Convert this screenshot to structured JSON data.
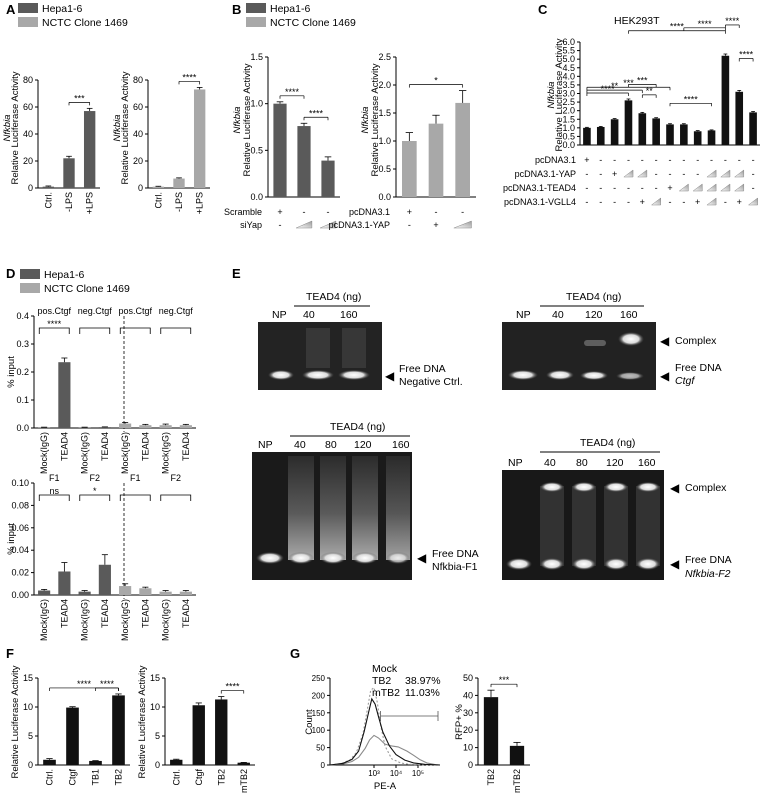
{
  "panel_labels": [
    "A",
    "B",
    "C",
    "D",
    "E",
    "F",
    "G"
  ],
  "colors": {
    "dark": "#5a5a5a",
    "light": "#a8a8a8",
    "black": "#111111",
    "shade": "#c8c8c8"
  },
  "legend": {
    "dark": "Hepa1-6",
    "light": "NCTC Clone 1469"
  },
  "chart_data": [
    {
      "id": "A1",
      "type": "bar",
      "ylabel_gene": "Nfkbia",
      "ylabel": "Relative Luciferase Activity",
      "categories": [
        "Ctrl.",
        "-LPS",
        "+LPS"
      ],
      "values": [
        1,
        22,
        57
      ],
      "errors": [
        0.5,
        1.5,
        2
      ],
      "ylim": [
        0,
        80
      ],
      "yticks": [
        0,
        20,
        40,
        60,
        80
      ],
      "color": "dark",
      "sig": [
        {
          "from": 1,
          "to": 2,
          "text": "***"
        }
      ]
    },
    {
      "id": "A2",
      "type": "bar",
      "ylabel_gene": "Nfkbia",
      "ylabel": "Relative Luciferase Activity",
      "categories": [
        "Ctrl.",
        "-LPS",
        "+LPS"
      ],
      "values": [
        1,
        7,
        73
      ],
      "errors": [
        0.3,
        0.5,
        1.5
      ],
      "ylim": [
        0,
        80
      ],
      "yticks": [
        0,
        20,
        40,
        60,
        80
      ],
      "color": "light",
      "sig": [
        {
          "from": 1,
          "to": 2,
          "text": "****"
        }
      ]
    },
    {
      "id": "B1",
      "type": "bar",
      "ylabel_gene": "Nfkbia",
      "ylabel": "Relative Luciferase Activity",
      "categories": [
        "1",
        "2",
        "3"
      ],
      "values": [
        1.0,
        0.76,
        0.39
      ],
      "errors": [
        0.02,
        0.03,
        0.04
      ],
      "ylim": [
        0,
        1.5
      ],
      "yticks": [
        0.0,
        0.5,
        1.0,
        1.5
      ],
      "ytick_labels": [
        "0.0",
        "0.5",
        "1.0",
        "1.5"
      ],
      "color": "dark",
      "sig": [
        {
          "from": 0,
          "to": 1,
          "text": "****"
        },
        {
          "from": 1,
          "to": 2,
          "text": "****"
        }
      ],
      "rows": [
        {
          "label": "Scramble",
          "marks": [
            "+",
            "-",
            "-"
          ]
        },
        {
          "label": "siYap",
          "marks": [
            "-",
            "ramp",
            "ramp"
          ]
        }
      ]
    },
    {
      "id": "B2",
      "type": "bar",
      "ylabel_gene": "Nfkbia",
      "ylabel": "Relative Luciferase Activity",
      "categories": [
        "1",
        "2",
        "3"
      ],
      "values": [
        1.0,
        1.31,
        1.68
      ],
      "errors": [
        0.15,
        0.15,
        0.22
      ],
      "ylim": [
        0,
        2.5
      ],
      "yticks": [
        0.0,
        0.5,
        1.0,
        1.5,
        2.0,
        2.5
      ],
      "ytick_labels": [
        "0.0",
        "0.5",
        "1.0",
        "1.5",
        "2.0",
        "2.5"
      ],
      "color": "light",
      "sig": [
        {
          "from": 0,
          "to": 2,
          "text": "*"
        }
      ],
      "rows": [
        {
          "label": "pcDNA3.1",
          "marks": [
            "+",
            "-",
            "-"
          ]
        },
        {
          "label": "pcDNA3.1-YAP",
          "marks": [
            "-",
            "+",
            "ramp"
          ]
        }
      ]
    },
    {
      "id": "C",
      "type": "bar",
      "title": "HEK293T",
      "ylabel_gene": "Nfkbia",
      "ylabel": "Relative Luciferase Activity",
      "categories": [
        "1",
        "2",
        "3",
        "4",
        "5",
        "6",
        "7",
        "8",
        "9",
        "10",
        "11",
        "12",
        "13"
      ],
      "values": [
        1.0,
        1.05,
        1.5,
        2.6,
        1.85,
        1.55,
        1.2,
        1.2,
        0.8,
        0.85,
        5.2,
        3.1,
        1.9
      ],
      "errors": [
        0.03,
        0.03,
        0.04,
        0.08,
        0.05,
        0.04,
        0.04,
        0.04,
        0.04,
        0.03,
        0.1,
        0.08,
        0.05
      ],
      "ylim": [
        0,
        6
      ],
      "yticks": [
        0.0,
        0.5,
        1.0,
        1.5,
        2.0,
        2.5,
        3.0,
        3.5,
        4.0,
        4.5,
        5.0,
        5.5,
        6.0
      ],
      "ytick_labels": [
        "0.0",
        "0.5",
        "1.0",
        "1.5",
        "2.0",
        "2.5",
        "3.0",
        "3.5",
        "4.0",
        "4.5",
        "5.0",
        "5.5",
        "6.0"
      ],
      "color": "black",
      "sig": [
        {
          "from": 0,
          "to": 3,
          "text": "****"
        },
        {
          "from": 0,
          "to": 4,
          "text": "**"
        },
        {
          "from": 0,
          "to": 6,
          "text": "***"
        },
        {
          "from": 3,
          "to": 5,
          "text": "***"
        },
        {
          "from": 4,
          "to": 5,
          "text": "**"
        },
        {
          "from": 6,
          "to": 9,
          "text": "****"
        },
        {
          "from": 3,
          "to": 10,
          "text": "****"
        },
        {
          "from": 7,
          "to": 10,
          "text": "****"
        },
        {
          "from": 10,
          "to": 11,
          "text": "****"
        },
        {
          "from": 11,
          "to": 12,
          "text": "****"
        }
      ],
      "rows": [
        {
          "label": "pcDNA3.1",
          "marks": [
            "+",
            "-",
            "-",
            "-",
            "-",
            "-",
            "-",
            "-",
            "-",
            "-",
            "-",
            "-",
            "-"
          ]
        },
        {
          "label": "pcDNA3.1-YAP",
          "marks": [
            "-",
            "-",
            "+",
            "ramp",
            "ramp",
            "-",
            "-",
            "-",
            "-",
            "ramp",
            "ramp",
            "ramp",
            "-"
          ]
        },
        {
          "label": "pcDNA3.1-TEAD4",
          "marks": [
            "-",
            "-",
            "-",
            "-",
            "-",
            "-",
            "+",
            "ramp",
            "ramp",
            "ramp",
            "ramp",
            "ramp",
            "-"
          ]
        },
        {
          "label": "pcDNA3.1-VGLL4",
          "marks": [
            "-",
            "-",
            "-",
            "-",
            "+",
            "ramp",
            "-",
            "-",
            "+",
            "ramp",
            "-",
            "+",
            "ramp"
          ]
        }
      ]
    },
    {
      "id": "D1",
      "type": "bar",
      "ylabel": "% input",
      "categories": [
        "Mock(IgG)",
        "TEAD4",
        "Mock(IgG)",
        "TEAD4",
        "Mock(IgG)",
        "TEAD4",
        "Mock(IgG)",
        "TEAD4"
      ],
      "values": [
        0.002,
        0.235,
        0.002,
        0.003,
        0.016,
        0.01,
        0.01,
        0.01
      ],
      "errors": [
        0.001,
        0.015,
        0.001,
        0.001,
        0.004,
        0.003,
        0.004,
        0.003
      ],
      "bar_colors": [
        "dark",
        "dark",
        "dark",
        "dark",
        "light",
        "light",
        "light",
        "light"
      ],
      "ylim": [
        0,
        0.4
      ],
      "yticks": [
        0.0,
        0.1,
        0.2,
        0.3,
        0.4
      ],
      "ytick_labels": [
        "0.0",
        "0.1",
        "0.2",
        "0.3",
        "0.4"
      ],
      "groups": [
        {
          "label": "pos.Ctgf",
          "from": 0,
          "to": 1,
          "bracket_text": "****"
        },
        {
          "label": "neg.Ctgf",
          "from": 2,
          "to": 3,
          "bracket_text": ""
        },
        {
          "label": "pos.Ctgf",
          "from": 4,
          "to": 5,
          "bracket_text": ""
        },
        {
          "label": "neg.Ctgf",
          "from": 6,
          "to": 7,
          "bracket_text": ""
        }
      ]
    },
    {
      "id": "D2",
      "type": "bar",
      "ylabel": "% input",
      "categories": [
        "Mock(IgG)",
        "TEAD4",
        "Mock(IgG)",
        "TEAD4",
        "Mock(IgG)",
        "TEAD4",
        "Mock(IgG)",
        "TEAD4"
      ],
      "values": [
        0.004,
        0.021,
        0.003,
        0.027,
        0.008,
        0.006,
        0.003,
        0.003
      ],
      "errors": [
        0.001,
        0.008,
        0.001,
        0.009,
        0.002,
        0.001,
        0.001,
        0.001
      ],
      "bar_colors": [
        "dark",
        "dark",
        "dark",
        "dark",
        "light",
        "light",
        "light",
        "light"
      ],
      "ylim": [
        0,
        0.1
      ],
      "yticks": [
        0.0,
        0.02,
        0.04,
        0.06,
        0.08,
        0.1
      ],
      "ytick_labels": [
        "0.00",
        "0.02",
        "0.04",
        "0.06",
        "0.08",
        "0.10"
      ],
      "groups": [
        {
          "label": "F1",
          "from": 0,
          "to": 1,
          "bracket_text": "ns"
        },
        {
          "label": "F2",
          "from": 2,
          "to": 3,
          "bracket_text": "*"
        },
        {
          "label": "F1",
          "from": 4,
          "to": 5,
          "bracket_text": ""
        },
        {
          "label": "F2",
          "from": 6,
          "to": 7,
          "bracket_text": ""
        }
      ]
    },
    {
      "id": "F1",
      "type": "bar",
      "ylabel": "Relative Luciferase Activity",
      "categories": [
        "Ctrl.",
        "Ctgf",
        "TB1",
        "TB2"
      ],
      "values": [
        0.9,
        9.9,
        0.7,
        12.0
      ],
      "errors": [
        0.2,
        0.15,
        0.05,
        0.25
      ],
      "ylim": [
        0,
        15
      ],
      "yticks": [
        0,
        5,
        10,
        15
      ],
      "color": "black",
      "sig": [
        {
          "from": 0,
          "to": 3,
          "text": "****"
        },
        {
          "from": 2,
          "to": 3,
          "text": "****"
        }
      ]
    },
    {
      "id": "F2",
      "type": "bar",
      "ylabel": "Relative Luciferase Activity",
      "categories": [
        "Ctrl.",
        "Ctgf",
        "TB2",
        "mTB2"
      ],
      "values": [
        0.9,
        10.3,
        11.3,
        0.4
      ],
      "errors": [
        0.1,
        0.4,
        0.5,
        0.05
      ],
      "ylim": [
        0,
        15
      ],
      "yticks": [
        0,
        5,
        10,
        15
      ],
      "color": "black",
      "sig": [
        {
          "from": 2,
          "to": 3,
          "text": "****"
        }
      ]
    },
    {
      "id": "G1",
      "type": "line",
      "ylabel": "Count",
      "xlabel": "PE-A",
      "ylim": [
        0,
        250
      ],
      "yticks": [
        0,
        50,
        100,
        150,
        200,
        250
      ],
      "xticks": [
        "10³",
        "10⁴",
        "10⁵"
      ],
      "legend": [
        {
          "name": "Mock",
          "value": ""
        },
        {
          "name": "TB2",
          "value": "38.97%"
        },
        {
          "name": "mTB2",
          "value": "11.03%"
        }
      ],
      "series": [
        {
          "name": "Mock",
          "x": [
            0,
            0.5,
            0.9,
            1.2,
            1.5,
            1.7,
            1.85,
            2.0,
            2.15,
            2.3,
            2.5,
            2.8,
            3.2,
            3.6,
            4.0,
            4.5,
            5.0
          ],
          "values": [
            0,
            4,
            14,
            36,
            90,
            160,
            215,
            222,
            180,
            115,
            55,
            18,
            6,
            2,
            1,
            0,
            0
          ]
        },
        {
          "name": "TB2",
          "x": [
            0,
            0.6,
            1.0,
            1.3,
            1.6,
            1.8,
            2.0,
            2.2,
            2.5,
            2.8,
            3.1,
            3.5,
            3.8,
            4.1,
            4.4,
            4.8,
            5.0
          ],
          "values": [
            0,
            3,
            10,
            22,
            48,
            72,
            85,
            78,
            60,
            55,
            52,
            40,
            28,
            15,
            6,
            1,
            0
          ]
        },
        {
          "name": "mTB2",
          "x": [
            0,
            0.6,
            1.0,
            1.3,
            1.55,
            1.75,
            1.9,
            2.05,
            2.2,
            2.4,
            2.7,
            3.0,
            3.4,
            3.8,
            4.3,
            5.0
          ],
          "values": [
            0,
            5,
            16,
            40,
            95,
            150,
            190,
            175,
            140,
            95,
            55,
            30,
            14,
            6,
            2,
            0
          ]
        }
      ]
    },
    {
      "id": "G2",
      "type": "bar",
      "ylabel": "RFP+ %",
      "categories": [
        "TB2",
        "mTB2"
      ],
      "values": [
        39,
        11
      ],
      "errors": [
        4,
        2
      ],
      "ylim": [
        0,
        50
      ],
      "yticks": [
        0,
        10,
        20,
        30,
        40,
        50
      ],
      "color": "black",
      "sig": [
        {
          "from": 0,
          "to": 1,
          "text": "***"
        }
      ]
    }
  ],
  "gels": {
    "E1": {
      "header": "TEAD4 (ng)",
      "lanes": [
        "NP",
        "40",
        "160"
      ],
      "labels": [
        "Free DNA",
        "Negative Ctrl."
      ]
    },
    "E2": {
      "header": "TEAD4 (ng)",
      "lanes": [
        "NP",
        "40",
        "120",
        "160"
      ],
      "labels": [
        "Complex",
        "Free DNA",
        "Ctgf"
      ]
    },
    "E3": {
      "header": "TEAD4 (ng)",
      "lanes": [
        "NP",
        "40",
        "80",
        "120",
        "160"
      ],
      "labels": [
        "Free DNA",
        "Nfkbia-F1"
      ]
    },
    "E4": {
      "header": "TEAD4 (ng)",
      "lanes": [
        "NP",
        "40",
        "80",
        "120",
        "160"
      ],
      "labels": [
        "Complex",
        "Free DNA",
        "Nfkbia-F2"
      ]
    }
  }
}
